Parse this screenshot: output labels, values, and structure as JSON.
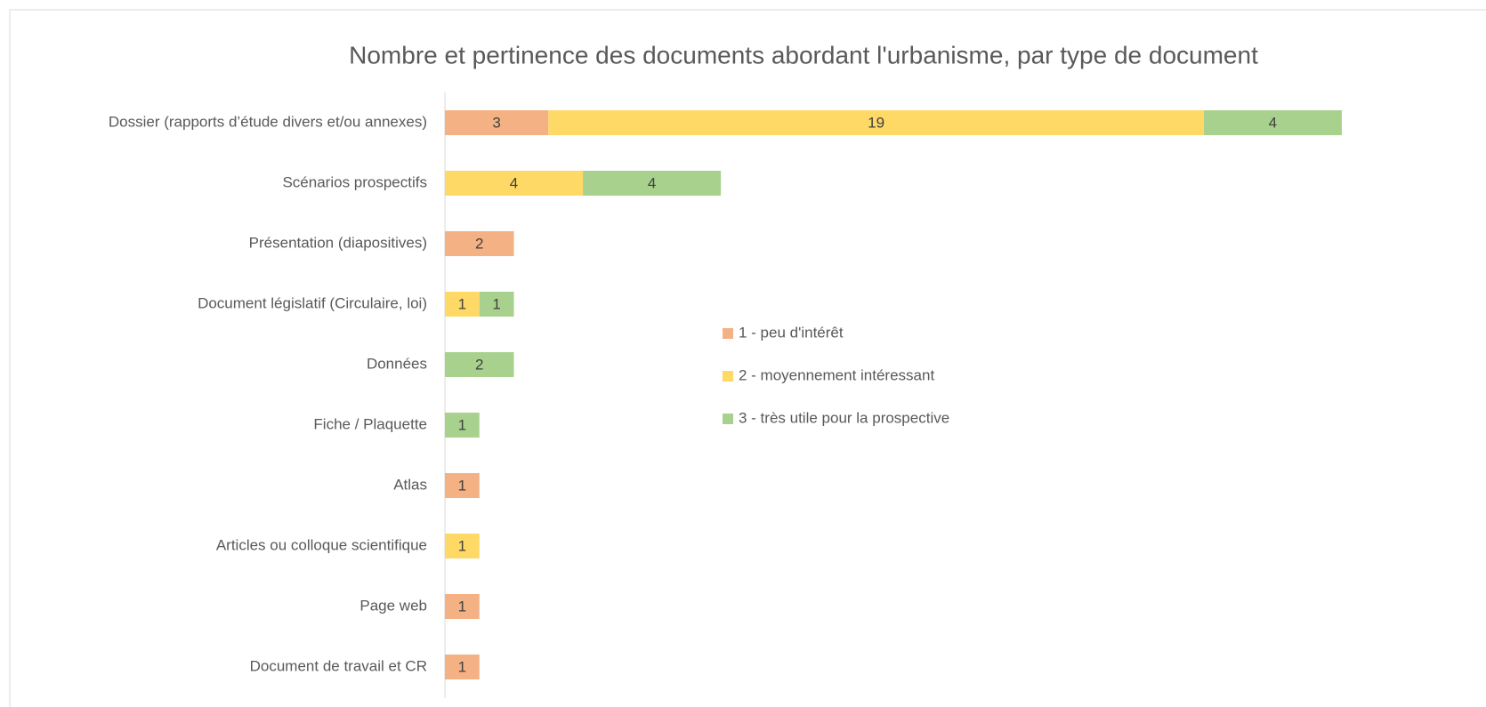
{
  "chart_data": {
    "type": "stacked-barh",
    "title": "Nombre et pertinence des documents abordant l'urbanisme, par type de document",
    "categories": [
      "Dossier (rapports d’étude divers et/ou annexes)",
      "Scénarios prospectifs",
      "Présentation (diapositives)",
      "Document législatif (Circulaire, loi)",
      "Données",
      "Fiche / Plaquette",
      "Atlas",
      "Articles ou colloque scientifique",
      "Page web",
      "Document de travail et CR"
    ],
    "series": [
      {
        "name": "1 - peu d'intérêt",
        "color": "#F4B183",
        "values": [
          3,
          null,
          2,
          null,
          null,
          null,
          1,
          null,
          1,
          1
        ]
      },
      {
        "name": "2 - moyennement intéressant",
        "color": "#FFD966",
        "values": [
          19,
          4,
          null,
          1,
          null,
          null,
          null,
          1,
          null,
          null
        ]
      },
      {
        "name": "3 - très utile pour la prospective",
        "color": "#A9D18E",
        "values": [
          4,
          4,
          null,
          1,
          2,
          1,
          null,
          null,
          null,
          null
        ]
      }
    ],
    "xlim": [
      0,
      30
    ],
    "legend": "center"
  }
}
